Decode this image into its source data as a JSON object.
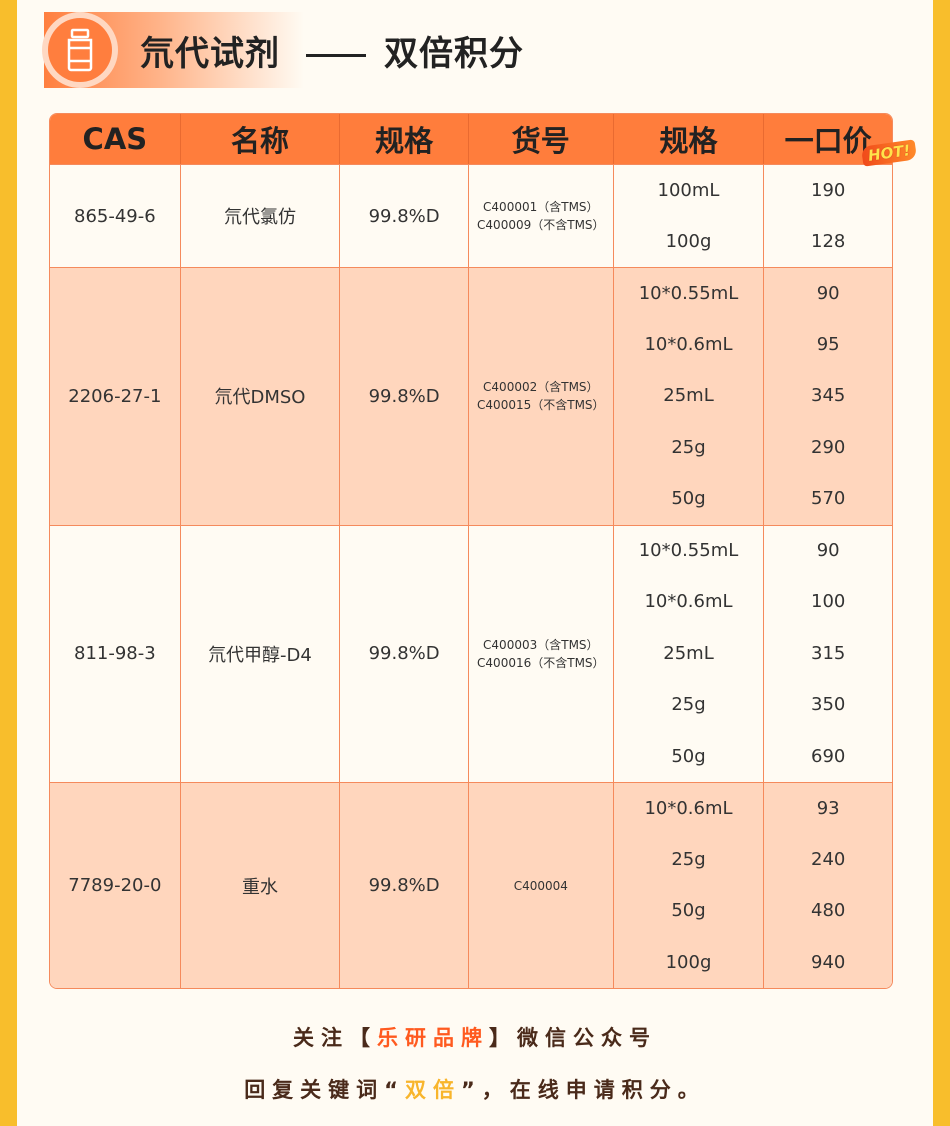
{
  "header": {
    "title_left": "氘代试剂",
    "title_right": "双倍积分",
    "icon": "reagent-bottle-icon"
  },
  "table": {
    "columns": [
      "CAS",
      "名称",
      "规格",
      "货号",
      "规格",
      "一口价"
    ],
    "hot_badge": "HOT!",
    "rows": [
      {
        "cas": "865-49-6",
        "name": "氘代氯仿",
        "purity": "99.8%D",
        "codes": [
          "C400001（含TMS）",
          "C400009（不含TMS）"
        ],
        "options": [
          {
            "spec": "100mL",
            "price": "190"
          },
          {
            "spec": "100g",
            "price": "128"
          }
        ]
      },
      {
        "cas": "2206-27-1",
        "name": "氘代DMSO",
        "purity": "99.8%D",
        "codes": [
          "C400002（含TMS）",
          "C400015（不含TMS）"
        ],
        "options": [
          {
            "spec": "10*0.55mL",
            "price": "90"
          },
          {
            "spec": "10*0.6mL",
            "price": "95"
          },
          {
            "spec": "25mL",
            "price": "345"
          },
          {
            "spec": "25g",
            "price": "290"
          },
          {
            "spec": "50g",
            "price": "570"
          }
        ]
      },
      {
        "cas": "811-98-3",
        "name": "氘代甲醇-D4",
        "purity": "99.8%D",
        "codes": [
          "C400003（含TMS）",
          "C400016（不含TMS）"
        ],
        "options": [
          {
            "spec": "10*0.55mL",
            "price": "90"
          },
          {
            "spec": "10*0.6mL",
            "price": "100"
          },
          {
            "spec": "25mL",
            "price": "315"
          },
          {
            "spec": "25g",
            "price": "350"
          },
          {
            "spec": "50g",
            "price": "690"
          }
        ]
      },
      {
        "cas": "7789-20-0",
        "name": "重水",
        "purity": "99.8%D",
        "codes": [
          "C400004"
        ],
        "options": [
          {
            "spec": "10*0.6mL",
            "price": "93"
          },
          {
            "spec": "25g",
            "price": "240"
          },
          {
            "spec": "50g",
            "price": "480"
          },
          {
            "spec": "100g",
            "price": "940"
          }
        ]
      }
    ]
  },
  "footer": {
    "line1": {
      "pre": "关注【",
      "brand": "乐研品牌",
      "post": "】微信公众号"
    },
    "line2": {
      "pre": "回复关键词“",
      "keyword": "双倍",
      "post": "”，在线申请积分。"
    }
  },
  "colors": {
    "accent": "#FF7D3C",
    "side": "#F8BE2C",
    "row_alt": "#FFD6BD",
    "brand": "#FF5A1F",
    "keyword": "#F8B52C"
  }
}
